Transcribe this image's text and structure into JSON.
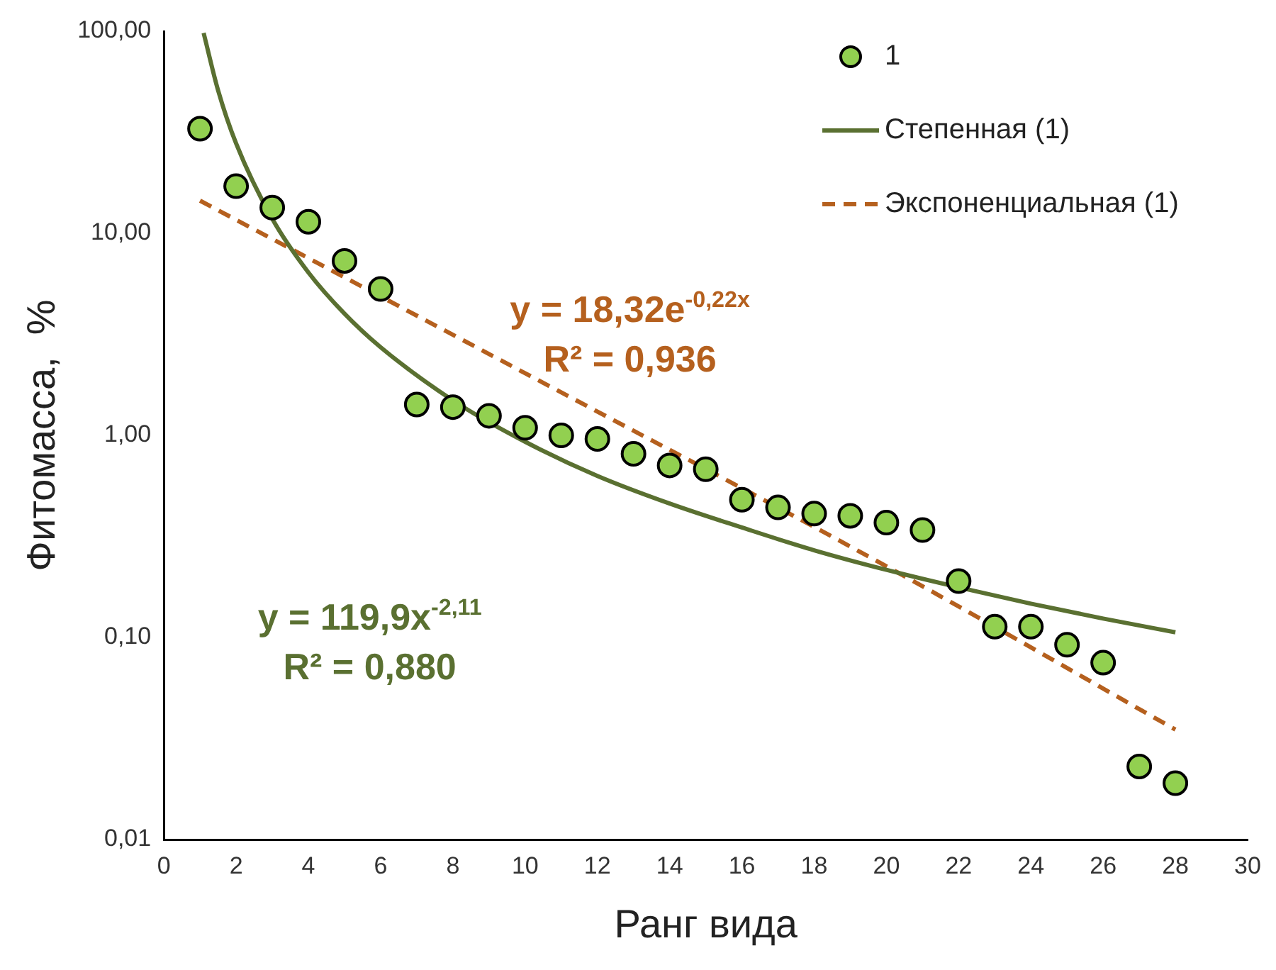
{
  "chart_data": {
    "type": "scatter",
    "xlabel": "Ранг вида",
    "ylabel": "Фитомасса,  %",
    "log": "y",
    "grid": false,
    "legend": "top right",
    "xlim": [
      0,
      30
    ],
    "xticks": [
      0,
      2,
      4,
      6,
      8,
      10,
      12,
      14,
      16,
      18,
      20,
      22,
      24,
      26,
      28,
      30
    ],
    "ylim": [
      0.01,
      100
    ],
    "yticks": [
      {
        "value": 0.01,
        "label": "0,01"
      },
      {
        "value": 0.1,
        "label": "0,10"
      },
      {
        "value": 1,
        "label": "1,00"
      },
      {
        "value": 10,
        "label": "10,00"
      },
      {
        "value": 100,
        "label": "100,00"
      }
    ],
    "annotations": [
      "y = 18,32e$^{-0,22x}$",
      "R² = 0,936",
      "y = 119,9x$^{-2,11}$",
      "R² = 0,880"
    ],
    "series": [
      {
        "name": "1",
        "marker": "circle",
        "color": "#92d050",
        "x": [
          1,
          2,
          3,
          4,
          5,
          6,
          7,
          8,
          9,
          10,
          11,
          12,
          13,
          14,
          15,
          16,
          17,
          18,
          19,
          20,
          21,
          22,
          23,
          24,
          25,
          26,
          27,
          28
        ],
        "values": [
          32.9,
          17.1,
          13.4,
          11.4,
          7.3,
          5.3,
          1.42,
          1.38,
          1.25,
          1.09,
          1.0,
          0.96,
          0.81,
          0.71,
          0.68,
          0.48,
          0.44,
          0.41,
          0.4,
          0.37,
          0.34,
          0.19,
          0.113,
          0.113,
          0.092,
          0.075,
          0.023,
          0.019
        ]
      },
      {
        "name": "Степенная (1)",
        "type": "line",
        "line_style": "solid",
        "color": "#5a7031",
        "x": [
          1.1,
          1.5,
          2,
          3,
          4,
          5,
          6,
          8,
          10,
          12,
          14,
          16,
          18,
          20,
          22,
          24,
          26,
          28
        ],
        "values": [
          98,
          51,
          27.8,
          11.8,
          6.4,
          4.0,
          2.73,
          1.49,
          0.93,
          0.63,
          0.46,
          0.35,
          0.27,
          0.216,
          0.177,
          0.147,
          0.124,
          0.106
        ]
      },
      {
        "name": "Экспоненциальная (1)",
        "type": "line",
        "line_style": "dashed",
        "color": "#b5601e",
        "x": [
          1,
          10,
          20,
          28
        ],
        "values": [
          14.5,
          2.03,
          0.225,
          0.035
        ]
      }
    ]
  }
}
